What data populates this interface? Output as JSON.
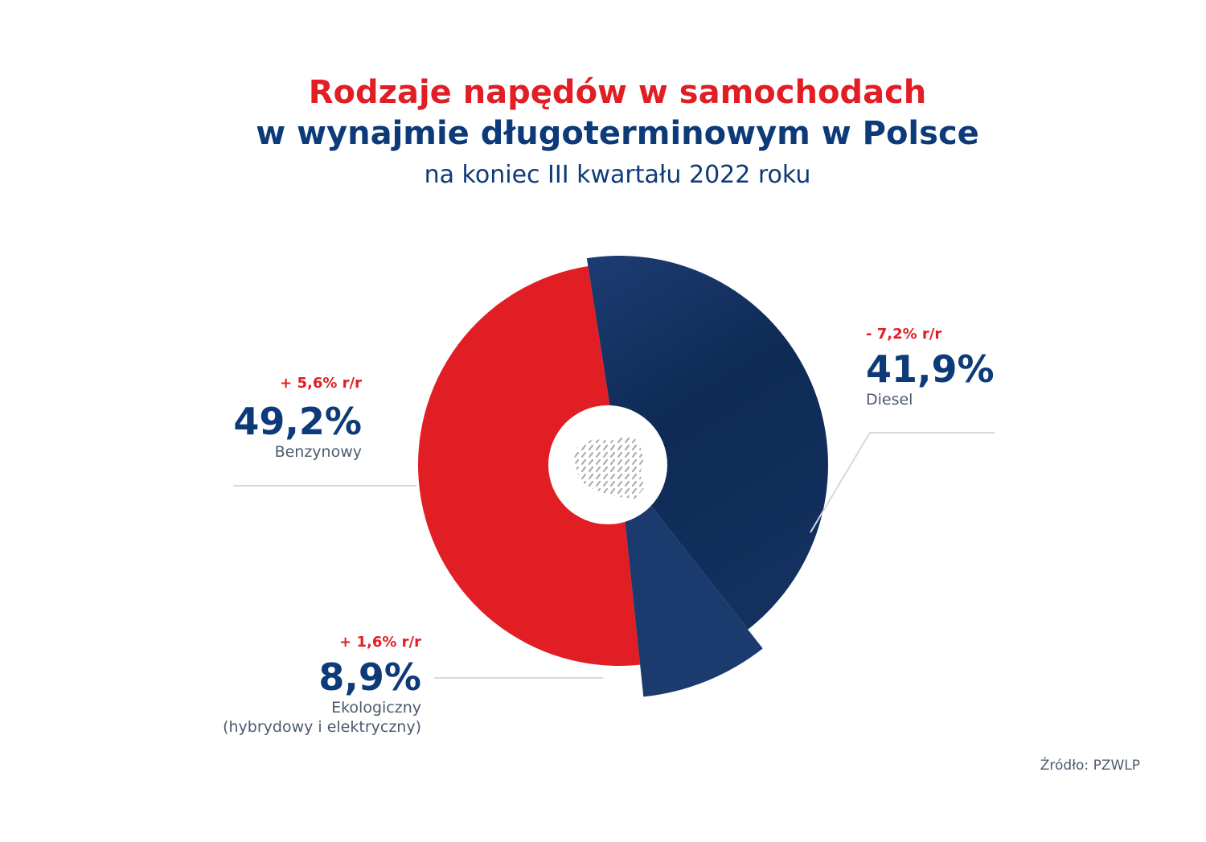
{
  "title_line1": "Rodzaje napędów w samochodach",
  "title_line2": "w wynajmie długoterminowym w Polsce",
  "subtitle": "na koniec III kwartału 2022 roku",
  "source": "Źródło: PZWLP",
  "colors": {
    "red": "#e21e25",
    "navy": "#0d3a78",
    "dark_navy": "#0e2a55",
    "mid_navy": "#1b3a6e"
  },
  "chart_data": {
    "type": "pie",
    "series": [
      {
        "name": "Benzynowy",
        "value": 49.2,
        "value_label": "49,2%",
        "change": "+ 5,6% r/r",
        "color": "#e21e25"
      },
      {
        "name": "Diesel",
        "value": 41.9,
        "value_label": "41,9%",
        "change": "- 7,2% r/r",
        "color": "#0e2a55"
      },
      {
        "name": "Ekologiczny",
        "name_line2": "(hybrydowy i elektryczny)",
        "value": 8.9,
        "value_label": "8,9%",
        "change": "+ 1,6% r/r",
        "color": "#1b3a6e"
      }
    ]
  }
}
